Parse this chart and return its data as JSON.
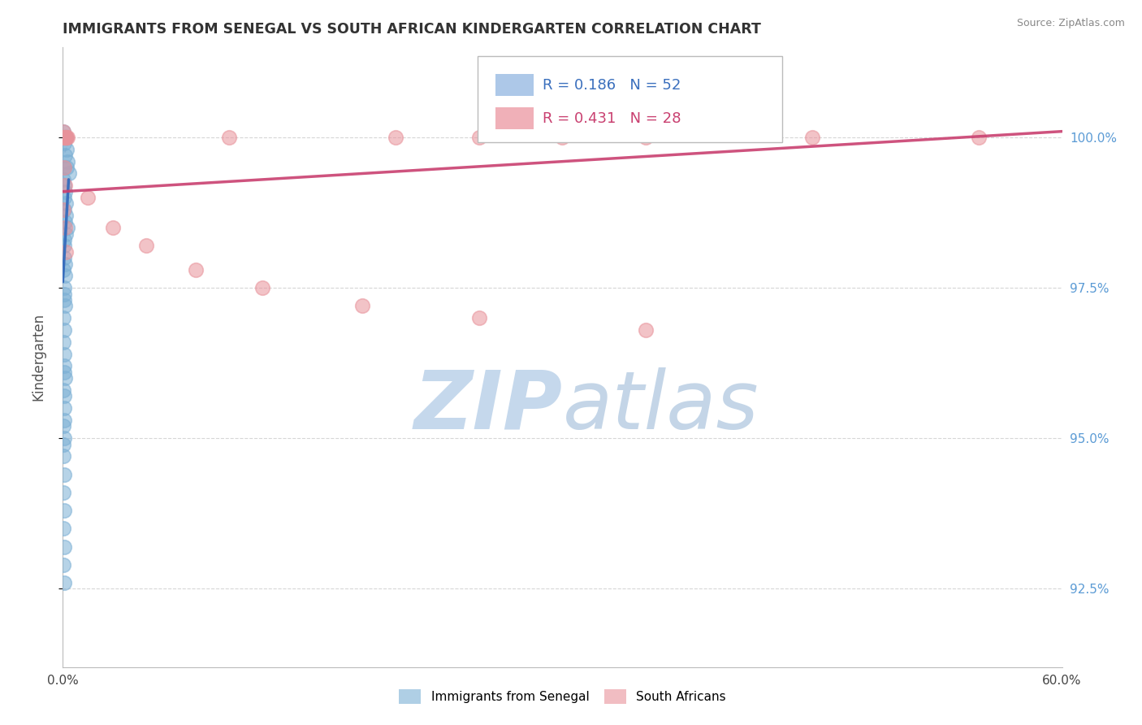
{
  "title": "IMMIGRANTS FROM SENEGAL VS SOUTH AFRICAN KINDERGARTEN CORRELATION CHART",
  "source": "Source: ZipAtlas.com",
  "ylabel": "Kindergarten",
  "xlim": [
    0.0,
    60.0
  ],
  "ylim": [
    91.2,
    101.5
  ],
  "yticks": [
    92.5,
    95.0,
    97.5,
    100.0
  ],
  "xticks": [
    0.0,
    10.0,
    20.0,
    30.0,
    40.0,
    50.0,
    60.0
  ],
  "xtick_labels": [
    "0.0%",
    "",
    "",
    "",
    "",
    "",
    "60.0%"
  ],
  "legend_labels": [
    "Immigrants from Senegal",
    "South Africans"
  ],
  "r_blue": 0.186,
  "n_blue": 52,
  "r_pink": 0.431,
  "n_pink": 28,
  "blue_color": "#7bafd4",
  "pink_color": "#e8929a",
  "watermark_zip": "ZIP",
  "watermark_atlas": "atlas",
  "watermark_color_zip": "#c5d8ec",
  "watermark_color_atlas": "#c5d8ec",
  "background_color": "#ffffff",
  "grid_color": "#cccccc",
  "tick_label_color": "#5b9bd5",
  "blue_scatter_x": [
    0.05,
    0.12,
    0.18,
    0.08,
    0.22,
    0.15,
    0.3,
    0.25,
    0.1,
    0.35,
    0.04,
    0.08,
    0.12,
    0.06,
    0.16,
    0.1,
    0.2,
    0.14,
    0.28,
    0.18,
    0.06,
    0.1,
    0.08,
    0.14,
    0.05,
    0.12,
    0.08,
    0.1,
    0.06,
    0.15,
    0.04,
    0.08,
    0.05,
    0.1,
    0.06,
    0.12,
    0.05,
    0.08,
    0.04,
    0.07,
    0.05,
    0.08,
    0.04,
    0.06,
    0.05,
    0.07,
    0.04,
    0.06,
    0.05,
    0.08,
    0.06,
    0.1
  ],
  "blue_scatter_y": [
    100.1,
    100.0,
    100.0,
    99.9,
    99.8,
    99.7,
    99.6,
    99.5,
    99.5,
    99.4,
    99.3,
    99.2,
    99.1,
    99.0,
    98.9,
    98.8,
    98.7,
    98.6,
    98.5,
    98.4,
    98.3,
    98.2,
    98.0,
    97.9,
    97.8,
    97.7,
    97.5,
    97.4,
    97.3,
    97.2,
    97.0,
    96.8,
    96.6,
    96.4,
    96.2,
    96.0,
    95.8,
    95.5,
    95.2,
    95.0,
    94.7,
    94.4,
    94.1,
    93.8,
    93.5,
    93.2,
    92.9,
    92.6,
    94.9,
    95.3,
    95.7,
    96.1
  ],
  "pink_scatter_x": [
    0.05,
    0.12,
    0.2,
    0.08,
    0.25,
    0.15,
    0.3,
    0.1,
    10.0,
    20.0,
    25.0,
    30.0,
    35.0,
    45.0,
    55.0,
    0.08,
    0.15,
    0.05,
    0.12,
    0.18,
    1.5,
    3.0,
    5.0,
    8.0,
    12.0,
    18.0,
    25.0,
    35.0
  ],
  "pink_scatter_y": [
    100.1,
    100.0,
    100.0,
    100.0,
    100.0,
    100.0,
    100.0,
    100.0,
    100.0,
    100.0,
    100.0,
    100.0,
    100.0,
    100.0,
    100.0,
    99.5,
    99.2,
    98.8,
    98.5,
    98.1,
    99.0,
    98.5,
    98.2,
    97.8,
    97.5,
    97.2,
    97.0,
    96.8
  ],
  "blue_line_x": [
    0.0,
    0.35
  ],
  "blue_line_y": [
    97.6,
    99.3
  ],
  "pink_line_x": [
    0.0,
    60.0
  ],
  "pink_line_y": [
    99.1,
    100.1
  ],
  "dash_line_x": [
    0.12,
    0.5
  ],
  "dash_line_y": [
    99.75,
    100.05
  ]
}
